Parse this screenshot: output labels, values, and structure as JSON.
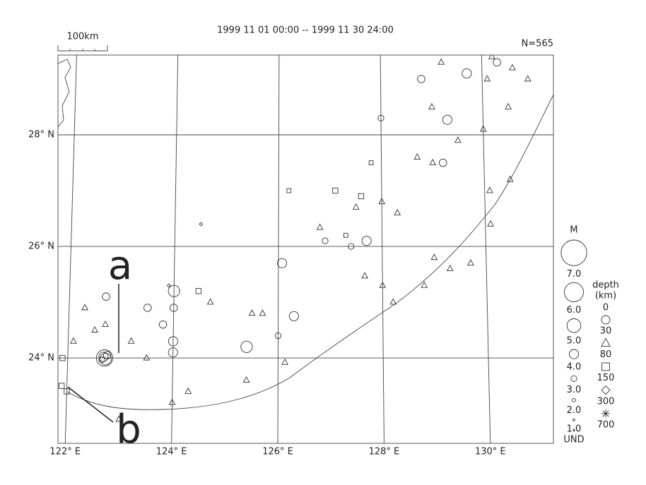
{
  "header": {
    "period": "1999 11 01 00:00 -- 1999 11 30 24:00",
    "count": "N=565",
    "scale": "100km"
  },
  "map": {
    "lonlim": [
      121.75,
      131.3
    ],
    "latlim": [
      22.47,
      29.43
    ],
    "lat_ticks": [
      {
        "value": 24,
        "label": "24° N"
      },
      {
        "value": 26,
        "label": "26° N"
      },
      {
        "value": 28,
        "label": "28° N"
      }
    ],
    "lon_ticks": [
      {
        "value": 122,
        "label": "122° E"
      },
      {
        "value": 124,
        "label": "124° E"
      },
      {
        "value": 126,
        "label": "126° E"
      },
      {
        "value": 128,
        "label": "128° E"
      },
      {
        "value": 130,
        "label": "130° E"
      }
    ],
    "annotations": [
      "a",
      "b"
    ]
  },
  "legend": {
    "mag_title": "M",
    "magnitudes": [
      {
        "value": 7,
        "label": "7.0"
      },
      {
        "value": 6,
        "label": "6.0"
      },
      {
        "value": 5,
        "label": "5.0"
      },
      {
        "value": 4,
        "label": "4.0"
      },
      {
        "value": 3,
        "label": "3.0"
      },
      {
        "value": 2,
        "label": "2.0"
      },
      {
        "value": 1,
        "label": "1.0"
      }
    ],
    "undetermined": "UND",
    "depth_title": "depth",
    "depth_unit": "(km)",
    "depths": [
      0,
      30,
      80,
      150,
      300,
      700
    ]
  },
  "events": {
    "lon": [
      122.7,
      122.72,
      122.68,
      122.75,
      122.65,
      122.1,
      122.5,
      122.3,
      122.7,
      123.2,
      123.5,
      124.0,
      124.0,
      123.8,
      124.0,
      124.0,
      123.5,
      122.7,
      125.4,
      126.0,
      126.3,
      126.07,
      125.5,
      125.7,
      124.3,
      124.0,
      125.4,
      126.13,
      123.0,
      124.7,
      124.47,
      121.9,
      121.9,
      122.0,
      124.5,
      123.9,
      126.8,
      127.5,
      128.0,
      128.3,
      127.66,
      128.0,
      128.2,
      128.8,
      129.0,
      129.3,
      129.7,
      130.1,
      130.1,
      130.5,
      129.0,
      128.7,
      129.5,
      130.0,
      129.0,
      130.1,
      130.5,
      129.2,
      130.2,
      130.6,
      130.9,
      129.3,
      128.8,
      129.7,
      130.3,
      127.7,
      127.4,
      128.0,
      129.2,
      126.9,
      127.6,
      127.1,
      126.2,
      127.3,
      127.8
    ],
    "lat": [
      24.0,
      23.98,
      24.02,
      24.05,
      23.97,
      24.3,
      24.5,
      24.9,
      24.6,
      24.3,
      24.0,
      24.3,
      24.1,
      24.6,
      25.2,
      24.9,
      24.9,
      25.1,
      24.2,
      24.4,
      24.75,
      25.7,
      24.8,
      24.8,
      23.4,
      23.2,
      23.6,
      23.92,
      22.9,
      25.0,
      25.2,
      24.0,
      23.5,
      23.4,
      26.4,
      25.3,
      26.34,
      26.7,
      26.8,
      26.6,
      25.47,
      25.3,
      25.0,
      25.3,
      25.8,
      25.6,
      25.7,
      27.0,
      26.4,
      27.2,
      27.5,
      27.6,
      27.9,
      28.1,
      28.5,
      29.0,
      28.5,
      29.3,
      29.4,
      29.2,
      29.0,
      28.27,
      29.0,
      29.1,
      29.3,
      26.1,
      26.0,
      28.3,
      27.5,
      26.1,
      26.9,
      27.0,
      27.0,
      26.2,
      27.5
    ],
    "mag": [
      5.5,
      4.5,
      4,
      3.5,
      3,
      3,
      3,
      3,
      3,
      3,
      3,
      4,
      4,
      3.5,
      4.5,
      3.5,
      3.5,
      3.5,
      4.5,
      3,
      4,
      4,
      3,
      3,
      3,
      3,
      3,
      3,
      3,
      3,
      3,
      3,
      3,
      3,
      2,
      2,
      3,
      3,
      3,
      3,
      3,
      3,
      3,
      3,
      3,
      3,
      3,
      3,
      3,
      3,
      3,
      3,
      3,
      3,
      3,
      3,
      3,
      3,
      3,
      3,
      3,
      4,
      3.5,
      4,
      3.5,
      4,
      3,
      3,
      3.5,
      3,
      3,
      3,
      2.5,
      2.5,
      2.5
    ],
    "depth": [
      10,
      10,
      10,
      10,
      10,
      50,
      50,
      50,
      50,
      50,
      50,
      10,
      10,
      10,
      10,
      10,
      10,
      10,
      10,
      10,
      10,
      10,
      50,
      50,
      50,
      50,
      50,
      50,
      50,
      50,
      100,
      100,
      100,
      100,
      200,
      200,
      50,
      50,
      50,
      50,
      50,
      50,
      50,
      50,
      50,
      50,
      50,
      50,
      50,
      50,
      50,
      50,
      50,
      50,
      50,
      50,
      50,
      50,
      50,
      50,
      50,
      10,
      10,
      10,
      10,
      10,
      10,
      10,
      10,
      10,
      100,
      100,
      100,
      100,
      100
    ]
  }
}
